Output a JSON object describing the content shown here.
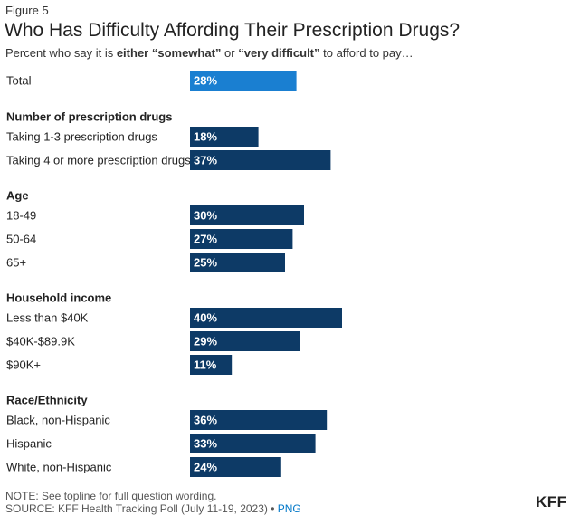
{
  "figure_label": "Figure 5",
  "title": "Who Has Difficulty Affording Their Prescription Drugs?",
  "subtitle": {
    "pre": "Percent who say it is ",
    "bold1": "either “somewhat”",
    "mid": " or ",
    "bold2": "“very difficult”",
    "post": " to afford to pay…"
  },
  "footer": {
    "note": "NOTE: See topline for full question wording.",
    "source": "SOURCE: KFF Health Tracking Poll (July 11-19, 2023) • ",
    "png_label": "PNG",
    "logo": "KFF"
  },
  "colors": {
    "total_bar": "#1a7fd1",
    "group_bar": "#0d3a66",
    "bar_label": "#ffffff"
  },
  "chart_data": {
    "type": "bar",
    "orientation": "horizontal",
    "xlim": [
      0,
      100
    ],
    "grid": false,
    "rows": [
      {
        "kind": "bar",
        "label": "Total",
        "value": 28,
        "display": "28%",
        "highlight": true
      },
      {
        "kind": "heading",
        "label": "Number of prescription drugs"
      },
      {
        "kind": "bar",
        "label": "Taking 1-3 prescription drugs",
        "value": 18,
        "display": "18%"
      },
      {
        "kind": "bar",
        "label": "Taking 4 or more prescription drugs",
        "value": 37,
        "display": "37%"
      },
      {
        "kind": "heading",
        "label": "Age"
      },
      {
        "kind": "bar",
        "label": "18-49",
        "value": 30,
        "display": "30%"
      },
      {
        "kind": "bar",
        "label": "50-64",
        "value": 27,
        "display": "27%"
      },
      {
        "kind": "bar",
        "label": "65+",
        "value": 25,
        "display": "25%"
      },
      {
        "kind": "heading",
        "label": "Household income"
      },
      {
        "kind": "bar",
        "label": "Less than $40K",
        "value": 40,
        "display": "40%"
      },
      {
        "kind": "bar",
        "label": "$40K-$89.9K",
        "value": 29,
        "display": "29%"
      },
      {
        "kind": "bar",
        "label": "$90K+",
        "value": 11,
        "display": "11%"
      },
      {
        "kind": "heading",
        "label": "Race/Ethnicity"
      },
      {
        "kind": "bar",
        "label": "Black, non-Hispanic",
        "value": 36,
        "display": "36%"
      },
      {
        "kind": "bar",
        "label": "Hispanic",
        "value": 33,
        "display": "33%"
      },
      {
        "kind": "bar",
        "label": "White, non-Hispanic",
        "value": 24,
        "display": "24%"
      }
    ]
  }
}
